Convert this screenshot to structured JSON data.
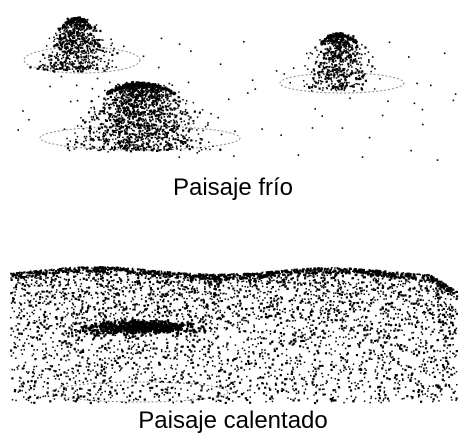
{
  "panels": {
    "cold": {
      "caption": "Paisaje frío"
    },
    "warm": {
      "caption": "Paisaje calentado"
    }
  },
  "colors": {
    "dots": "#000000",
    "base_outline": "#8a8a8a",
    "background": "#ffffff"
  }
}
